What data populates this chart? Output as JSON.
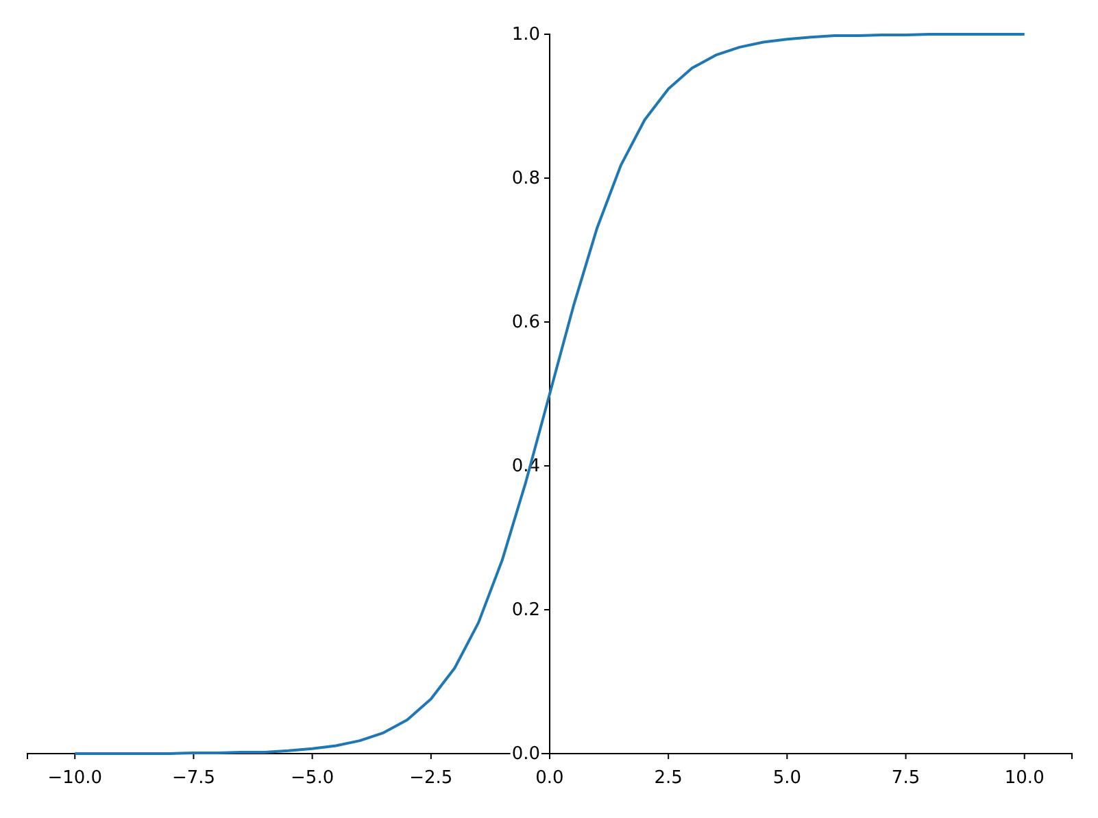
{
  "chart_data": {
    "type": "line",
    "x": [
      -10,
      -9.5,
      -9,
      -8.5,
      -8,
      -7.5,
      -7,
      -6.5,
      -6,
      -5.5,
      -5,
      -4.5,
      -4,
      -3.5,
      -3,
      -2.5,
      -2,
      -1.5,
      -1,
      -0.5,
      0,
      0.5,
      1,
      1.5,
      2,
      2.5,
      3,
      3.5,
      4,
      4.5,
      5,
      5.5,
      6,
      6.5,
      7,
      7.5,
      8,
      8.5,
      9,
      9.5,
      10
    ],
    "series": [
      {
        "color": "#1f77b4",
        "values": [
          0,
          0,
          0,
          0,
          0,
          0.001,
          0.001,
          0.002,
          0.002,
          0.004,
          0.007,
          0.011,
          0.018,
          0.029,
          0.047,
          0.076,
          0.119,
          0.182,
          0.269,
          0.378,
          0.5,
          0.622,
          0.731,
          0.818,
          0.881,
          0.924,
          0.953,
          0.971,
          0.982,
          0.989,
          0.993,
          0.996,
          0.998,
          0.998,
          0.999,
          0.999,
          1,
          1,
          1,
          1,
          1
        ]
      }
    ],
    "xlim": [
      -11,
      11
    ],
    "ylim": [
      0,
      1
    ],
    "xticks": [
      {
        "value": -10,
        "label": "−10.0"
      },
      {
        "value": -7.5,
        "label": "−7.5"
      },
      {
        "value": -5,
        "label": "−5.0"
      },
      {
        "value": -2.5,
        "label": "−2.5"
      },
      {
        "value": 0,
        "label": "0.0"
      },
      {
        "value": 2.5,
        "label": "2.5"
      },
      {
        "value": 5,
        "label": "5.0"
      },
      {
        "value": 7.5,
        "label": "7.5"
      },
      {
        "value": 10,
        "label": "10.0"
      }
    ],
    "yticks": [
      {
        "value": 0,
        "label": "0.0"
      },
      {
        "value": 0.2,
        "label": "0.2"
      },
      {
        "value": 0.4,
        "label": "0.4"
      },
      {
        "value": 0.6,
        "label": "0.6"
      },
      {
        "value": 0.8,
        "label": "0.8"
      },
      {
        "value": 1,
        "label": "1.0"
      }
    ],
    "grid": false,
    "marker": "none",
    "line_style": "solid"
  }
}
